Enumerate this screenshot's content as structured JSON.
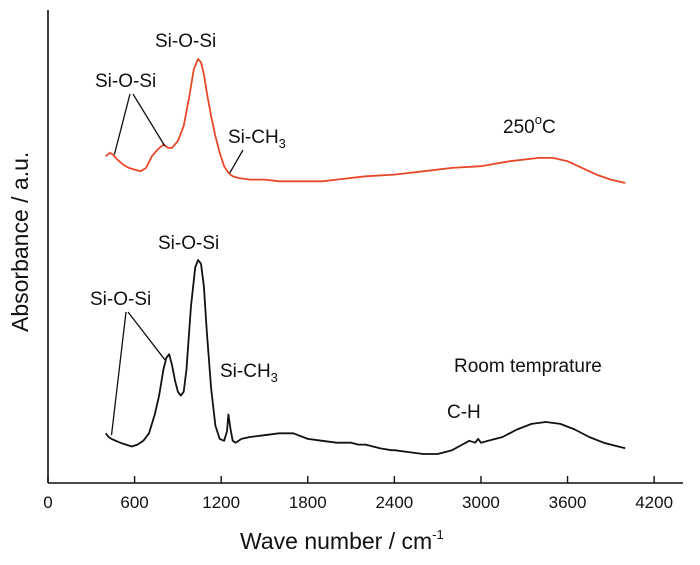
{
  "chart_data": {
    "type": "line",
    "title": "",
    "xlabel": "Wave number / cm",
    "xlabel_sup": "-1",
    "ylabel": "Absorbance / a.u.",
    "xlim": [
      0,
      4400
    ],
    "xticks": [
      0,
      600,
      1200,
      1800,
      2400,
      3000,
      3600,
      4200
    ],
    "yticks_shown": false,
    "series": [
      {
        "name": "250°C",
        "color": "#e8482a",
        "x": [
          400,
          430,
          450,
          480,
          520,
          560,
          600,
          640,
          680,
          720,
          760,
          800,
          830,
          860,
          900,
          940,
          980,
          1010,
          1040,
          1060,
          1080,
          1100,
          1130,
          1160,
          1190,
          1220,
          1250,
          1280,
          1320,
          1400,
          1500,
          1600,
          1700,
          1800,
          1900,
          2000,
          2200,
          2400,
          2600,
          2800,
          3000,
          3200,
          3400,
          3500,
          3600,
          3700,
          3800,
          3900,
          4000
        ],
        "y": [
          0.84,
          0.86,
          0.85,
          0.82,
          0.79,
          0.77,
          0.76,
          0.75,
          0.77,
          0.84,
          0.88,
          0.91,
          0.89,
          0.89,
          0.93,
          1.02,
          1.2,
          1.36,
          1.42,
          1.4,
          1.33,
          1.22,
          1.08,
          0.96,
          0.86,
          0.78,
          0.74,
          0.72,
          0.71,
          0.7,
          0.7,
          0.69,
          0.69,
          0.69,
          0.69,
          0.7,
          0.72,
          0.73,
          0.75,
          0.77,
          0.78,
          0.81,
          0.83,
          0.83,
          0.81,
          0.77,
          0.73,
          0.7,
          0.68
        ],
        "peaks": [
          {
            "label": "Si-O-Si",
            "x": 460,
            "y": 0.85
          },
          {
            "label": "Si-O-Si",
            "x": 810,
            "y": 0.9
          },
          {
            "label": "Si-O-Si",
            "x": 1040,
            "y": 1.42
          },
          {
            "label": "Si-CH3",
            "x": 1260,
            "y": 0.74
          }
        ]
      },
      {
        "name": "Room temprature",
        "color": "#111111",
        "x": [
          400,
          420,
          440,
          470,
          500,
          540,
          580,
          620,
          660,
          700,
          740,
          770,
          800,
          820,
          840,
          860,
          880,
          900,
          920,
          940,
          960,
          990,
          1020,
          1040,
          1060,
          1080,
          1100,
          1130,
          1160,
          1190,
          1220,
          1240,
          1250,
          1265,
          1280,
          1300,
          1340,
          1400,
          1500,
          1600,
          1700,
          1800,
          1900,
          2000,
          2100,
          2150,
          2200,
          2300,
          2380,
          2400,
          2500,
          2600,
          2700,
          2800,
          2870,
          2920,
          2960,
          2980,
          3000,
          3050,
          3150,
          3250,
          3350,
          3450,
          3550,
          3650,
          3750,
          3850,
          3950,
          4000
        ],
        "y": [
          0.08,
          0.06,
          0.05,
          0.04,
          0.03,
          0.02,
          0.01,
          0.02,
          0.04,
          0.08,
          0.18,
          0.28,
          0.42,
          0.48,
          0.5,
          0.44,
          0.36,
          0.3,
          0.28,
          0.3,
          0.42,
          0.75,
          0.96,
          1.0,
          0.98,
          0.86,
          0.62,
          0.32,
          0.12,
          0.05,
          0.04,
          0.09,
          0.18,
          0.1,
          0.04,
          0.03,
          0.05,
          0.06,
          0.07,
          0.08,
          0.08,
          0.05,
          0.04,
          0.03,
          0.03,
          0.02,
          0.02,
          0.0,
          -0.01,
          -0.01,
          -0.02,
          -0.03,
          -0.03,
          -0.01,
          0.02,
          0.04,
          0.03,
          0.05,
          0.03,
          0.04,
          0.06,
          0.1,
          0.13,
          0.14,
          0.13,
          0.1,
          0.06,
          0.03,
          0.01,
          0.0
        ],
        "peaks": [
          {
            "label": "Si-O-Si",
            "x": 440,
            "y": 0.07
          },
          {
            "label": "Si-O-Si",
            "x": 810,
            "y": 0.47
          },
          {
            "label": "Si-O-Si",
            "x": 1040,
            "y": 1.0
          },
          {
            "label": "Si-CH3",
            "x": 1250,
            "y": 0.18
          },
          {
            "label": "C-H",
            "x": 2980,
            "y": 0.05
          }
        ]
      }
    ]
  },
  "annotations": {
    "top_sioosi_main": "Si-O-Si",
    "top_sioosi_side": "Si-O-Si",
    "top_sich3_main": "Si-CH",
    "top_sich3_sub": "3",
    "top_temp_main": "250",
    "top_temp_sup": "o",
    "top_temp_tail": "C",
    "bot_sioosi_main": "Si-O-Si",
    "bot_sioosi_side": "Si-O-Si",
    "bot_sich3_main": "Si-CH",
    "bot_sich3_sub": "3",
    "bot_room": "Room temprature",
    "bot_ch": "C-H"
  }
}
